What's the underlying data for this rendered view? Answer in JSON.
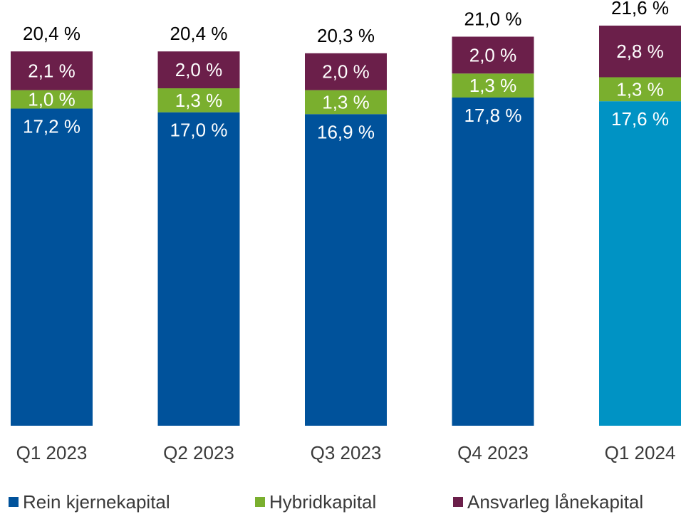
{
  "chart_data": {
    "type": "bar",
    "stacked": true,
    "categories": [
      "Q1 2023",
      "Q2 2023",
      "Q3 2023",
      "Q4 2023",
      "Q1 2024"
    ],
    "series": [
      {
        "name": "Rein kjernekapital",
        "color": "#00529B",
        "highlight_color": "#0093C4",
        "values": [
          17.2,
          17.0,
          16.9,
          17.8,
          17.6
        ],
        "labels": [
          "17,2 %",
          "17,0 %",
          "16,9 %",
          "17,8 %",
          "17,6 %"
        ]
      },
      {
        "name": "Hybridkapital",
        "color": "#7AAF2E",
        "values": [
          1.0,
          1.3,
          1.3,
          1.3,
          1.3
        ],
        "labels": [
          "1,0 %",
          "1,3 %",
          "1,3 %",
          "1,3 %",
          "1,3 %"
        ]
      },
      {
        "name": "Ansvarleg lånekapital",
        "color": "#6B1F4A",
        "values": [
          2.1,
          2.0,
          2.0,
          2.0,
          2.8
        ],
        "labels": [
          "2,1 %",
          "2,0 %",
          "2,0 %",
          "2,0 %",
          "2,8 %"
        ]
      }
    ],
    "totals": [
      20.4,
      20.4,
      20.3,
      21.0,
      21.6
    ],
    "total_labels": [
      "20,4 %",
      "20,4 %",
      "20,3 %",
      "21,0 %",
      "21,6 %"
    ],
    "highlight_index": 4,
    "ylim": [
      0,
      23.5
    ],
    "grid": false,
    "legend": {
      "position": "bottom",
      "items": [
        "Rein kjernekapital",
        "Hybridkapital",
        "Ansvarleg lånekapital"
      ],
      "colors": [
        "#00529B",
        "#7AAF2E",
        "#6B1F4A"
      ]
    }
  }
}
